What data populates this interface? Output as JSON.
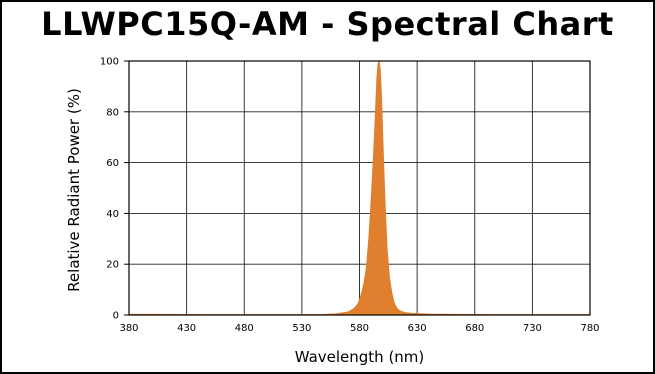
{
  "chart_data": {
    "type": "area",
    "title": "LLWPC15Q-AM - Spectral Chart",
    "xlabel": "Wavelength (nm)",
    "ylabel": "Relative Radiant Power (%)",
    "xlim": [
      380,
      780
    ],
    "ylim": [
      0,
      100
    ],
    "xticks": [
      "380",
      "430",
      "480",
      "530",
      "580",
      "630",
      "680",
      "730",
      "780"
    ],
    "yticks": [
      "0",
      "20",
      "40",
      "60",
      "80",
      "100"
    ],
    "grid": true,
    "series_color": "#E07F2E",
    "series": [
      {
        "x": [
          380,
          400,
          450,
          500,
          530,
          550,
          560,
          570,
          575,
          578,
          580,
          582,
          584,
          586,
          588,
          590,
          592,
          594,
          595,
          596,
          597,
          598,
          599,
          600,
          601,
          602,
          603,
          604,
          606,
          608,
          610,
          612,
          614,
          617,
          620,
          625,
          630,
          640,
          660,
          700,
          780
        ],
        "y": [
          0.3,
          0.3,
          0.2,
          0.2,
          0.2,
          0.3,
          0.5,
          1.2,
          2.5,
          4,
          6,
          9,
          13,
          19,
          30,
          45,
          62,
          82,
          93,
          99,
          100,
          97,
          88,
          74,
          60,
          47,
          36,
          26,
          15,
          9,
          5,
          3,
          2,
          1.3,
          1,
          0.7,
          0.6,
          0.4,
          0.3,
          0.2,
          0.2
        ]
      }
    ]
  }
}
